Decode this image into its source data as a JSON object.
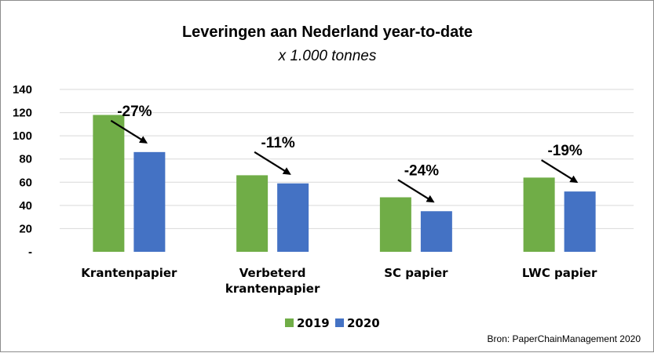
{
  "chart_data": {
    "type": "bar",
    "title": "Leveringen aan Nederland year-to-date",
    "subtitle": "x 1.000 tonnes",
    "categories": [
      [
        "Krantenpapier"
      ],
      [
        "Verbeterd",
        "krantenpapier"
      ],
      [
        "SC papier"
      ],
      [
        "LWC papier"
      ]
    ],
    "series": [
      {
        "name": "2019",
        "color": "#70ad47",
        "values": [
          118,
          66,
          47,
          64
        ]
      },
      {
        "name": "2020",
        "color": "#4472c4",
        "values": [
          86,
          59,
          35,
          52
        ]
      }
    ],
    "annotations": [
      "-27%",
      "-11%",
      "-24%",
      "-19%"
    ],
    "ylim": [
      0,
      140
    ],
    "yticks": [
      {
        "value": 0,
        "label": "-"
      },
      {
        "value": 20,
        "label": "20"
      },
      {
        "value": 40,
        "label": "40"
      },
      {
        "value": 60,
        "label": "60"
      },
      {
        "value": 80,
        "label": "80"
      },
      {
        "value": 100,
        "label": "100"
      },
      {
        "value": 120,
        "label": "120"
      },
      {
        "value": 140,
        "label": "140"
      }
    ],
    "grid": true,
    "legend_position": "bottom",
    "source": "Bron: PaperChainManagement 2020"
  }
}
